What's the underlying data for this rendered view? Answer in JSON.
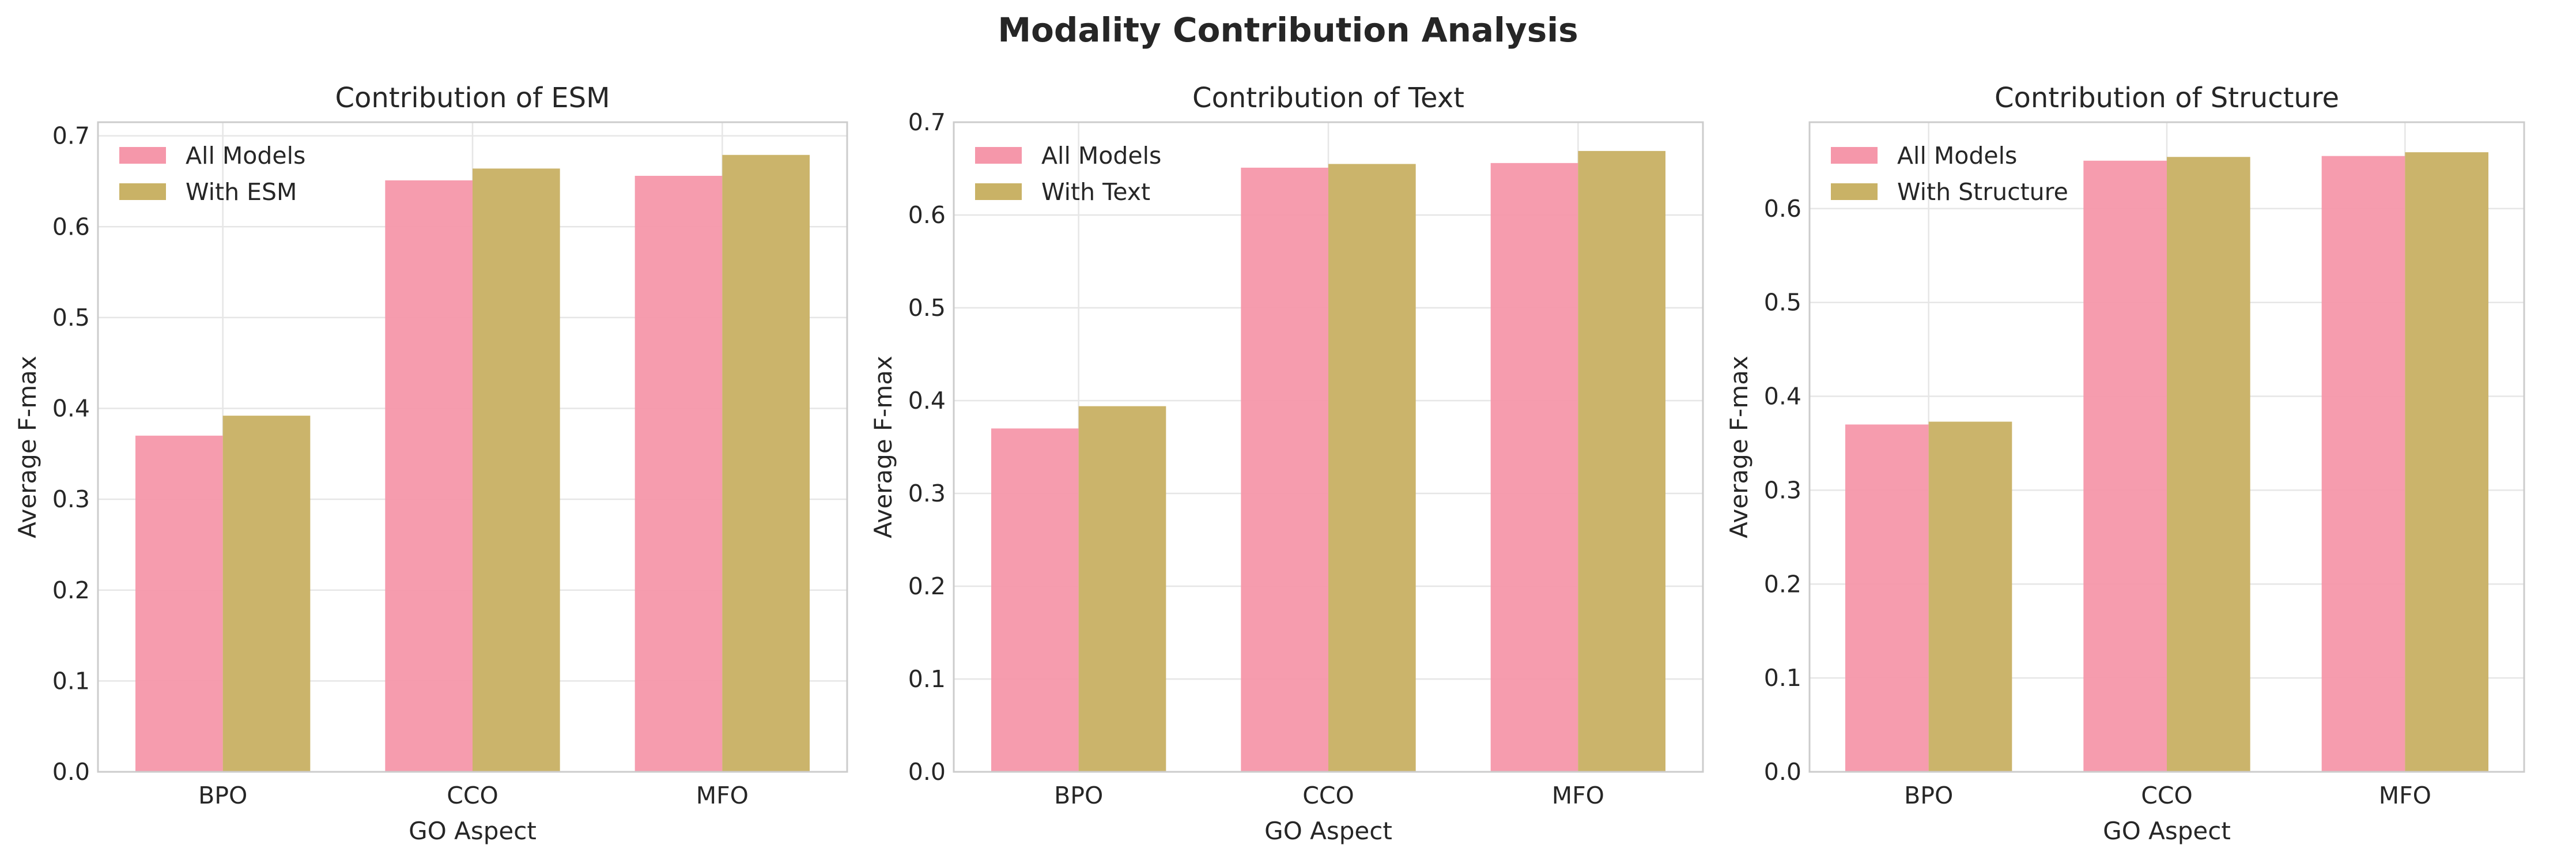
{
  "figure": {
    "title": "Modality Contribution Analysis"
  },
  "colors": {
    "all_models": "#f597aa",
    "with_modality": "#c9b266"
  },
  "chart_data": [
    {
      "type": "bar",
      "title": "Contribution of ESM",
      "xlabel": "GO Aspect",
      "ylabel": "Average F-max",
      "categories": [
        "BPO",
        "CCO",
        "MFO"
      ],
      "ylim": [
        0,
        0.715
      ],
      "yticks": [
        "0.0",
        "0.1",
        "0.2",
        "0.3",
        "0.4",
        "0.5",
        "0.6",
        "0.7"
      ],
      "grid": true,
      "legend_position": "top-left",
      "series": [
        {
          "name": "All Models",
          "values": [
            0.37,
            0.651,
            0.656
          ]
        },
        {
          "name": "With ESM",
          "values": [
            0.392,
            0.664,
            0.679
          ]
        }
      ]
    },
    {
      "type": "bar",
      "title": "Contribution of Text",
      "xlabel": "GO Aspect",
      "ylabel": "Average F-max",
      "categories": [
        "BPO",
        "CCO",
        "MFO"
      ],
      "ylim": [
        0,
        0.7
      ],
      "yticks": [
        "0.0",
        "0.1",
        "0.2",
        "0.3",
        "0.4",
        "0.5",
        "0.6",
        "0.7"
      ],
      "grid": true,
      "legend_position": "top-left",
      "series": [
        {
          "name": "All Models",
          "values": [
            0.37,
            0.651,
            0.656
          ]
        },
        {
          "name": "With Text",
          "values": [
            0.394,
            0.655,
            0.669
          ]
        }
      ]
    },
    {
      "type": "bar",
      "title": "Contribution of Structure",
      "xlabel": "GO Aspect",
      "ylabel": "Average F-max",
      "categories": [
        "BPO",
        "CCO",
        "MFO"
      ],
      "ylim": [
        0,
        0.692
      ],
      "yticks": [
        "0.0",
        "0.1",
        "0.2",
        "0.3",
        "0.4",
        "0.5",
        "0.6"
      ],
      "grid": true,
      "legend_position": "top-left",
      "series": [
        {
          "name": "All Models",
          "values": [
            0.37,
            0.651,
            0.656
          ]
        },
        {
          "name": "With Structure",
          "values": [
            0.373,
            0.655,
            0.66
          ]
        }
      ]
    }
  ]
}
